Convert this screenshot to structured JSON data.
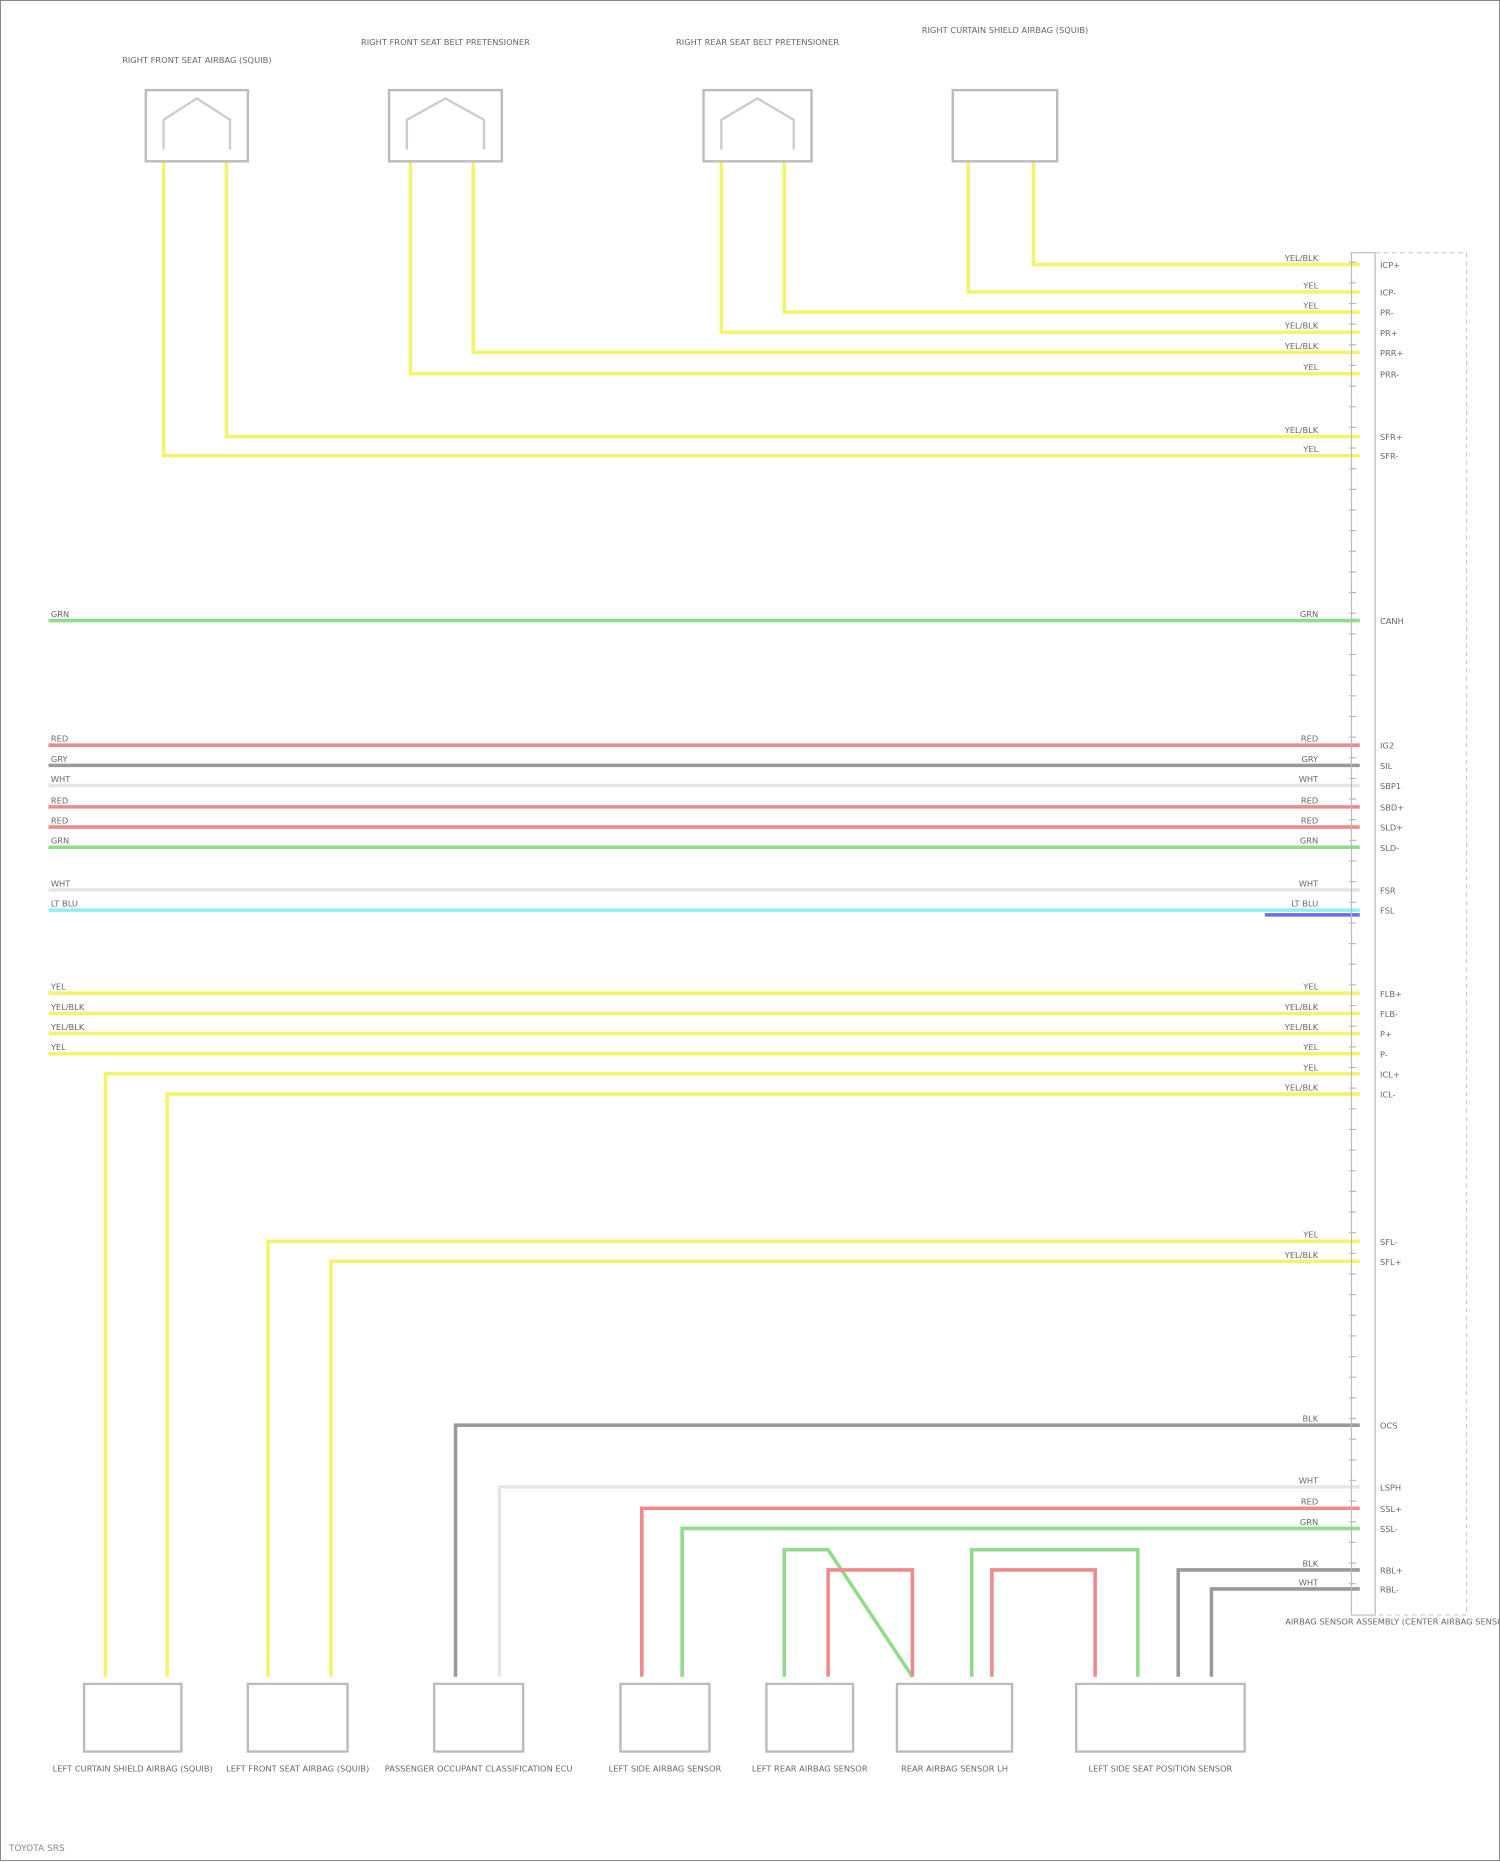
{
  "colors": {
    "YEL": "#f4f46a",
    "GRN": "#8fdc8a",
    "RED": "#f08a8a",
    "GRY": "#9a9a9a",
    "WHT": "#e6e6e6",
    "LT BLU": "#8ff0f4",
    "BLK": "#777777",
    "connector": "#bbbbbb"
  },
  "top_components": [
    {
      "label": "RIGHT FRONT SEAT AIRBAG (SQUIB)"
    },
    {
      "label": "RIGHT FRONT SEAT BELT PRETENSIONER"
    },
    {
      "label": "RIGHT REAR SEAT BELT PRETENSIONER"
    },
    {
      "label": "RIGHT CURTAIN SHIELD AIRBAG (SQUIB)"
    }
  ],
  "bottom_components": [
    {
      "label": "LEFT CURTAIN SHIELD AIRBAG (SQUIB)"
    },
    {
      "label": "LEFT FRONT SEAT AIRBAG (SQUIB)"
    },
    {
      "label": "PASSENGER OCCUPANT CLASSIFICATION ECU"
    },
    {
      "label": "LEFT SIDE AIRBAG SENSOR"
    },
    {
      "label": "LEFT REAR AIRBAG SENSOR"
    },
    {
      "label": "REAR AIRBAG SENSOR LH"
    },
    {
      "label": "LEFT SIDE SEAT POSITION SENSOR"
    }
  ],
  "module": {
    "label": "AIRBAG SENSOR ASSEMBLY (CENTER AIRBAG SENSOR)"
  },
  "wires": [
    {
      "color": "YEL",
      "label": "YEL/BLK",
      "pin": "ICP+"
    },
    {
      "color": "YEL",
      "label": "YEL",
      "pin": "ICP-"
    },
    {
      "color": "YEL",
      "label": "YEL",
      "pin": "PR-"
    },
    {
      "color": "YEL",
      "label": "YEL/BLK",
      "pin": "PR+"
    },
    {
      "color": "YEL",
      "label": "YEL/BLK",
      "pin": "PRR+"
    },
    {
      "color": "YEL",
      "label": "YEL",
      "pin": "PRR-"
    },
    {
      "color": "YEL",
      "label": "YEL/BLK",
      "pin": "SFR+"
    },
    {
      "color": "YEL",
      "label": "YEL",
      "pin": "SFR-"
    },
    {
      "color": "GRN",
      "label": "GRN",
      "pin": "CANH"
    },
    {
      "color": "RED",
      "label": "RED",
      "pin": "IG2"
    },
    {
      "color": "GRY",
      "label": "GRY",
      "pin": "SIL"
    },
    {
      "color": "WHT",
      "label": "WHT",
      "pin": "SBP1"
    },
    {
      "color": "RED",
      "label": "RED",
      "pin": "SBD+"
    },
    {
      "color": "RED",
      "label": "RED",
      "pin": "SLD+"
    },
    {
      "color": "GRN",
      "label": "GRN",
      "pin": "SLD-"
    },
    {
      "color": "WHT",
      "label": "WHT",
      "pin": "FSR"
    },
    {
      "color": "LT BLU",
      "label": "LT BLU",
      "pin": "FSL"
    },
    {
      "color": "YEL",
      "label": "YEL",
      "pin": "FLB+"
    },
    {
      "color": "YEL",
      "label": "YEL/BLK",
      "pin": "FLB-"
    },
    {
      "color": "YEL",
      "label": "YEL/BLK",
      "pin": "P+"
    },
    {
      "color": "YEL",
      "label": "YEL",
      "pin": "P-"
    },
    {
      "color": "YEL",
      "label": "YEL",
      "pin": "ICL+"
    },
    {
      "color": "YEL",
      "label": "YEL/BLK",
      "pin": "ICL-"
    },
    {
      "color": "YEL",
      "label": "YEL",
      "pin": "SFL-"
    },
    {
      "color": "YEL",
      "label": "YEL/BLK",
      "pin": "SFL+"
    },
    {
      "color": "GRY",
      "label": "BLK",
      "pin": "OCS"
    },
    {
      "color": "WHT",
      "label": "WHT",
      "pin": "LSPH"
    },
    {
      "color": "RED",
      "label": "RED",
      "pin": "SSL+"
    },
    {
      "color": "GRN",
      "label": "GRN",
      "pin": "SSL-"
    },
    {
      "color": "GRY",
      "label": "BLK",
      "pin": "RBL+"
    },
    {
      "color": "GRY",
      "label": "WHT",
      "pin": "RBL-"
    }
  ],
  "footer": "TOYOTA SRS"
}
